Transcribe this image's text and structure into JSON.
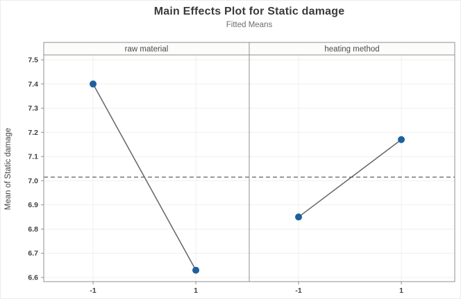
{
  "title": "Main Effects Plot for Static damage",
  "subtitle": "Fitted Means",
  "chart_data": {
    "type": "line",
    "title": "Main Effects Plot for Static damage",
    "subtitle": "Fitted Means",
    "ylabel": "Mean of Static damage",
    "xlabel": "",
    "categories": [
      "-1",
      "1"
    ],
    "panels": [
      {
        "label": "raw material",
        "values": [
          7.4,
          6.63
        ]
      },
      {
        "label": "heating method",
        "values": [
          6.85,
          7.17
        ]
      }
    ],
    "overall_mean": 7.015,
    "reference_line_style": "dashed",
    "yticks": [
      6.6,
      6.7,
      6.8,
      6.9,
      7.0,
      7.1,
      7.2,
      7.3,
      7.4,
      7.5
    ],
    "ylim": [
      6.58,
      7.52
    ],
    "grid": "horizontal and vertical gridlines at ticks",
    "legend": "none",
    "colors": {
      "marker": "#1d609f",
      "line": "#63636b",
      "reference": "#6e6e6e",
      "grid": "#efefed",
      "frame": "#8f8f8f",
      "band_fill": "#fcfcfb",
      "tick_text": "#3f3f3f"
    }
  }
}
